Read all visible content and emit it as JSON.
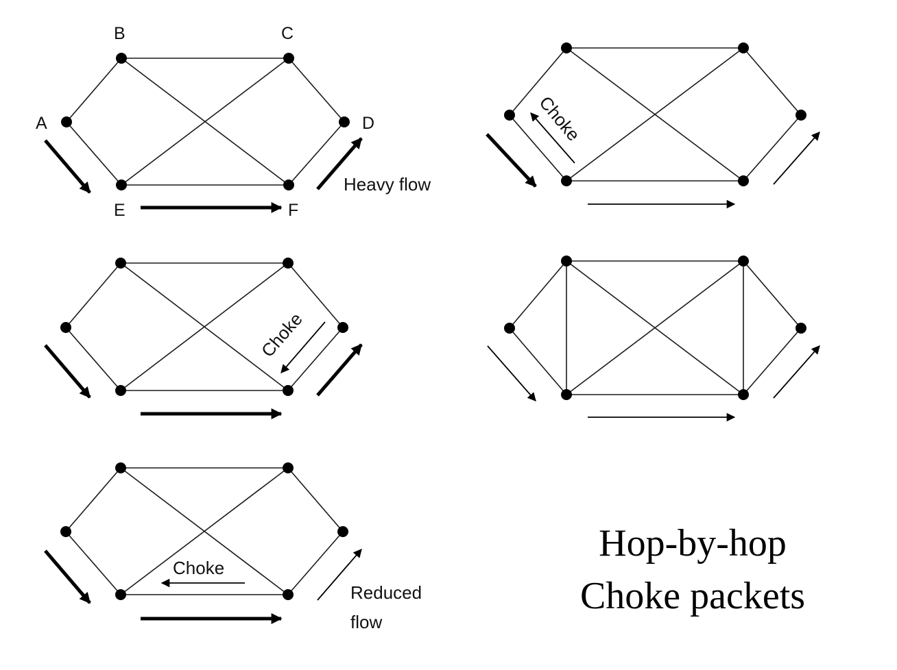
{
  "title": {
    "line1": "Hop-by-hop",
    "line2": "Choke packets"
  },
  "node_labels": {
    "A": "A",
    "B": "B",
    "C": "C",
    "D": "D",
    "E": "E",
    "F": "F"
  },
  "annotations": {
    "heavy_flow": "Heavy flow",
    "choke": "Choke",
    "reduced_flow_line1": "Reduced",
    "reduced_flow_line2": "flow"
  },
  "edges": [
    [
      "A",
      "B"
    ],
    [
      "A",
      "E"
    ],
    [
      "B",
      "C"
    ],
    [
      "B",
      "F"
    ],
    [
      "C",
      "E"
    ],
    [
      "C",
      "D"
    ],
    [
      "D",
      "F"
    ],
    [
      "E",
      "F"
    ]
  ],
  "extra_edges_panel_4": [
    [
      "B",
      "E"
    ],
    [
      "C",
      "F"
    ]
  ],
  "panels": [
    {
      "id": "p1",
      "labels_shown": true,
      "choke_on_link": null,
      "flow": {
        "A_E": "heavy",
        "E_F": "heavy",
        "F_D": "heavy"
      }
    },
    {
      "id": "p2",
      "labels_shown": false,
      "choke_on_link": "E-A",
      "flow": {
        "A_E": "heavy",
        "E_F": "reduced",
        "F_D": "reduced"
      }
    },
    {
      "id": "p3",
      "labels_shown": false,
      "choke_on_link": "D-F",
      "flow": {
        "A_E": "heavy",
        "E_F": "heavy",
        "F_D": "heavy"
      }
    },
    {
      "id": "p4",
      "labels_shown": false,
      "choke_on_link": null,
      "flow": {
        "A_E": "reduced",
        "E_F": "reduced",
        "F_D": "reduced"
      }
    },
    {
      "id": "p5",
      "labels_shown": false,
      "choke_on_link": "F-E",
      "flow": {
        "A_E": "heavy",
        "E_F": "heavy",
        "F_D": "reduced"
      }
    }
  ],
  "colors": {
    "ink": "#000000",
    "background": "#ffffff"
  }
}
